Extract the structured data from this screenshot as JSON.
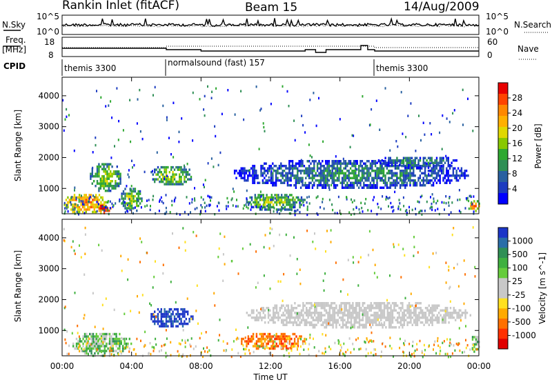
{
  "header": {
    "title": "Rankin Inlet (fitACF)",
    "beam": "Beam 15",
    "date": "14/Aug/2009"
  },
  "noise_panel": {
    "left_label": "N.Sky",
    "left_ticks": [
      "10^5",
      "10^0"
    ],
    "right_ticks": [
      "10^5",
      "10^0"
    ],
    "right_label": "N.Search"
  },
  "freq_panel": {
    "left_label_line1": "Freq.",
    "left_label_line2": "[MHz]",
    "left_ticks": [
      "18",
      "8"
    ],
    "right_ticks": [
      "60",
      "0"
    ],
    "right_label": "Nave"
  },
  "cpid": {
    "label": "CPID",
    "segments": [
      {
        "name": "themis 3300",
        "start_hour": 0
      },
      {
        "name": "normalsound (fast) 157",
        "start_hour": 6
      },
      {
        "name": "themis 3300",
        "start_hour": 18
      }
    ]
  },
  "axes": {
    "ylabel": "Slant Range [km]",
    "xlabel": "Time UT",
    "x_ticks": [
      "00:00",
      "04:00",
      "08:00",
      "12:00",
      "16:00",
      "20:00",
      "00:00"
    ],
    "y_ticks": [
      "1000",
      "2000",
      "3000",
      "4000"
    ]
  },
  "power_colorbar": {
    "title": "Power [dB]",
    "labels": [
      "28",
      "24",
      "20",
      "16",
      "12",
      "8",
      "4"
    ],
    "colors": [
      "#e80000",
      "#ff4400",
      "#ff8800",
      "#ffb000",
      "#e0d800",
      "#88c800",
      "#2ea830",
      "#2f8f55",
      "#2860a0",
      "#1c3cc0",
      "#0000ff"
    ]
  },
  "velocity_colorbar": {
    "title": "Velocity [m s^-1]",
    "labels": [
      "1000",
      "500",
      "100",
      "25",
      "-25",
      "-100",
      "-500",
      "-1000"
    ],
    "colors": [
      "#1c36c8",
      "#2a6ea8",
      "#2f8f55",
      "#3fb03f",
      "#66cc3c",
      "#c8c8c8",
      "#c8c8c8",
      "#ffe020",
      "#ffaa00",
      "#ff7000",
      "#ff3000",
      "#e00000"
    ]
  },
  "chart_data": {
    "type": "heatmap",
    "x_range_hours": [
      0,
      24
    ],
    "y_range_km": [
      180,
      4600
    ],
    "power_blobs": [
      {
        "t0": 0.0,
        "t1": 2.6,
        "r0": 200,
        "r1": 900,
        "level": "high"
      },
      {
        "t0": 2.0,
        "t1": 2.8,
        "r0": 200,
        "r1": 550,
        "level": "max"
      },
      {
        "t0": 3.3,
        "t1": 4.6,
        "r0": 250,
        "r1": 1100,
        "level": "med"
      },
      {
        "t0": 1.5,
        "t1": 3.4,
        "r0": 900,
        "r1": 1900,
        "level": "med"
      },
      {
        "t0": 5.0,
        "t1": 7.5,
        "r0": 1100,
        "r1": 1800,
        "level": "med"
      },
      {
        "t0": 9.7,
        "t1": 23.5,
        "r0": 1000,
        "r1": 2000,
        "level": "low"
      },
      {
        "t0": 10.5,
        "t1": 14.0,
        "r0": 300,
        "r1": 900,
        "level": "med"
      },
      {
        "t0": 18.0,
        "t1": 22.8,
        "r0": 1700,
        "r1": 2100,
        "level": "low"
      },
      {
        "t0": 23.4,
        "t1": 24.0,
        "r0": 300,
        "r1": 700,
        "level": "high"
      }
    ],
    "velocity_blobs": [
      {
        "t0": 5.0,
        "t1": 7.5,
        "r0": 1100,
        "r1": 1800,
        "velocity": "strong-positive"
      },
      {
        "t0": 10.2,
        "t1": 14.0,
        "r0": 400,
        "r1": 1000,
        "velocity": "negative"
      },
      {
        "t0": 10.5,
        "t1": 23.5,
        "r0": 1100,
        "r1": 2000,
        "velocity": "near-zero"
      },
      {
        "t0": 0.5,
        "t1": 4.0,
        "r0": 200,
        "r1": 1000,
        "velocity": "positive"
      },
      {
        "t0": 23.5,
        "t1": 24.0,
        "r0": 300,
        "r1": 900,
        "velocity": "positive"
      }
    ]
  }
}
